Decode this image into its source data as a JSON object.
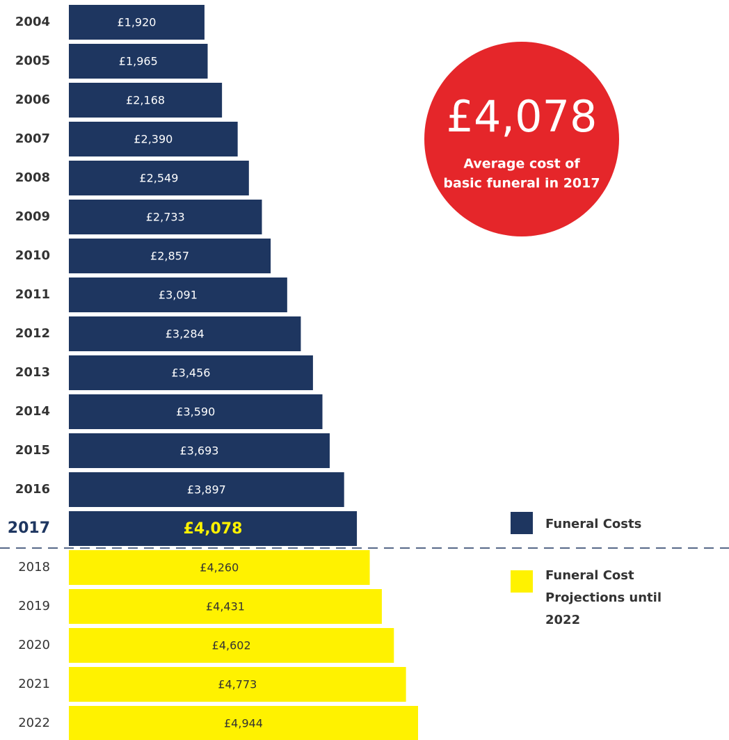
{
  "chart_data": {
    "type": "bar",
    "orientation": "horizontal",
    "categories": [
      "2004",
      "2005",
      "2006",
      "2007",
      "2008",
      "2009",
      "2010",
      "2011",
      "2012",
      "2013",
      "2014",
      "2015",
      "2016",
      "2017",
      "2018",
      "2019",
      "2020",
      "2021",
      "2022"
    ],
    "series": [
      {
        "name": "Funeral Costs",
        "color": "#1e3660",
        "values": [
          1920,
          1965,
          2168,
          2390,
          2549,
          2733,
          2857,
          3091,
          3284,
          3456,
          3590,
          3693,
          3897,
          4078,
          null,
          null,
          null,
          null,
          null
        ],
        "value_labels": [
          "£1,920",
          "£1,965",
          "£2,168",
          "£2,390",
          "£2,549",
          "£2,733",
          "£2,857",
          "£3,091",
          "£3,284",
          "£3,456",
          "£3,590",
          "£3,693",
          "£3,897",
          "£4,078",
          null,
          null,
          null,
          null,
          null
        ]
      },
      {
        "name": "Funeral Cost Projections until 2022",
        "color": "#fff200",
        "values": [
          null,
          null,
          null,
          null,
          null,
          null,
          null,
          null,
          null,
          null,
          null,
          null,
          null,
          null,
          4260,
          4431,
          4602,
          4773,
          4944
        ],
        "value_labels": [
          null,
          null,
          null,
          null,
          null,
          null,
          null,
          null,
          null,
          null,
          null,
          null,
          null,
          null,
          "£4,260",
          "£4,431",
          "£4,602",
          "£4,773",
          "£4,944"
        ]
      }
    ],
    "highlight": "2017",
    "annotation": {
      "value": 4078,
      "label": "£4,078",
      "lines": [
        "Average cost of",
        "basic funeral in 2017"
      ],
      "color": "#e5262a"
    }
  }
}
